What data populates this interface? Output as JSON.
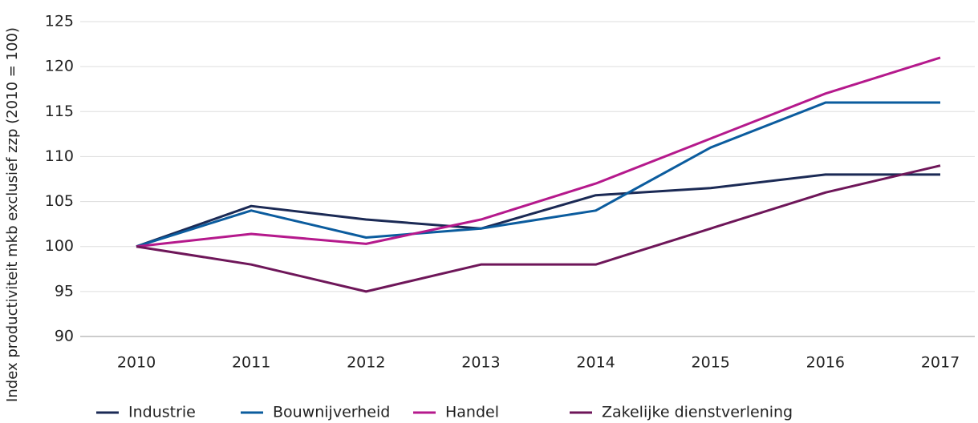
{
  "chart_data": {
    "type": "line",
    "y_label": "Index productiviteit mkb exclusief zzp  (2010 = 100)",
    "categories": [
      "2010",
      "2011",
      "2012",
      "2013",
      "2014",
      "2015",
      "2016",
      "2017"
    ],
    "series": [
      {
        "name": "Industrie",
        "color": "#1b2a55",
        "values": [
          100,
          104.5,
          103,
          102,
          105.7,
          106.5,
          108,
          108
        ]
      },
      {
        "name": "Bouwnijverheid",
        "color": "#0b5c9e",
        "values": [
          100,
          104,
          101,
          102,
          104,
          111,
          116,
          116
        ]
      },
      {
        "name": "Handel",
        "color": "#b5198c",
        "values": [
          100,
          101.4,
          100.3,
          103,
          107,
          112,
          117,
          121
        ]
      },
      {
        "name": "Zakelijke dienstverlening",
        "color": "#6e1659",
        "values": [
          100,
          98,
          95,
          98,
          98,
          102,
          106,
          109
        ]
      }
    ],
    "ylim": [
      90,
      125
    ],
    "yticks": [
      90,
      95,
      100,
      105,
      110,
      115,
      120,
      125
    ],
    "grid": true
  }
}
